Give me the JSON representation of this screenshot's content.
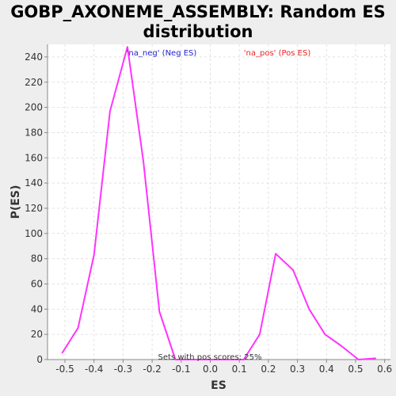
{
  "chart_data": {
    "type": "line",
    "title_line1": "GOBP_AXONEME_ASSEMBLY: Random ES",
    "title_line2": "distribution",
    "xlabel": "ES",
    "ylabel": "P(ES)",
    "xlim": [
      -0.56,
      0.62
    ],
    "ylim": [
      0,
      250
    ],
    "xticks": [
      -0.5,
      -0.4,
      -0.3,
      -0.2,
      -0.1,
      0.0,
      0.1,
      0.2,
      0.3,
      0.4,
      0.5,
      0.6
    ],
    "xtick_labels": [
      "-0.5",
      "-0.4",
      "-0.3",
      "-0.2",
      "-0.1",
      "0.0",
      "0.1",
      "0.2",
      "0.3",
      "0.4",
      "0.5",
      "0.6"
    ],
    "yticks": [
      0,
      20,
      40,
      60,
      80,
      100,
      120,
      140,
      160,
      180,
      200,
      220,
      240
    ],
    "grid": true,
    "line_color": "#ff33ff",
    "series": [
      {
        "x": [
          -0.51,
          -0.455,
          -0.4,
          -0.345,
          -0.285,
          -0.23,
          -0.175,
          -0.12,
          -0.06,
          0.0,
          0.06,
          0.115,
          0.17,
          0.225,
          0.285,
          0.34,
          0.395,
          0.45,
          0.51,
          0.57
        ],
        "y": [
          5,
          25,
          83,
          197,
          248,
          157,
          38,
          0,
          0,
          0,
          0,
          0,
          20,
          84,
          71,
          40,
          20,
          11,
          0,
          1
        ]
      }
    ],
    "annotations": [
      {
        "text": "'na_neg' (Neg ES)",
        "color": "#2222cc"
      },
      {
        "text": "'na_pos' (Pos ES)",
        "color": "#ee2222"
      },
      {
        "text": "Sets with pos scores: 25%",
        "color": "#333333"
      }
    ]
  }
}
